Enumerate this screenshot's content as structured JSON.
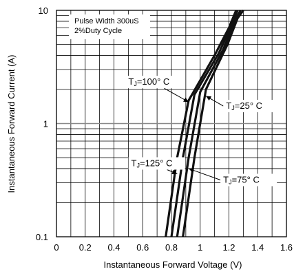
{
  "chart_data": {
    "type": "line",
    "title": "",
    "xlabel": "Instantaneous Forward Voltage (V)",
    "ylabel": "Instantaneous Forward Current (A)",
    "xlim": [
      0,
      1.6
    ],
    "ylim": [
      0.1,
      10
    ],
    "y_scale": "log",
    "grid": true,
    "x_ticks": [
      "0",
      "0.2",
      "0.4",
      "0.6",
      "0.8",
      "1",
      "1.2",
      "1.4",
      "1.6"
    ],
    "y_ticks": [
      "0.1",
      "1",
      "10"
    ],
    "legend_box": {
      "line1": "Pulse Width 300uS",
      "line2": "2%Duty Cycle",
      "placement": "top-left"
    },
    "series": [
      {
        "name": "TJ=125° C",
        "points": [
          [
            0.76,
            0.1
          ],
          [
            0.84,
            0.5
          ],
          [
            0.92,
            1.6
          ],
          [
            1.1,
            4.0
          ],
          [
            1.2,
            7.0
          ],
          [
            1.25,
            10
          ]
        ]
      },
      {
        "name": "TJ=100° C",
        "points": [
          [
            0.8,
            0.1
          ],
          [
            0.88,
            0.5
          ],
          [
            0.96,
            1.8
          ],
          [
            1.13,
            4.2
          ],
          [
            1.22,
            7.5
          ],
          [
            1.26,
            10
          ]
        ]
      },
      {
        "name": "TJ=75° C",
        "points": [
          [
            0.84,
            0.1
          ],
          [
            0.92,
            0.5
          ],
          [
            1.0,
            1.9
          ],
          [
            1.16,
            4.5
          ],
          [
            1.24,
            8.0
          ],
          [
            1.28,
            10
          ]
        ]
      },
      {
        "name": "TJ=25° C",
        "points": [
          [
            0.88,
            0.1
          ],
          [
            0.96,
            0.5
          ],
          [
            1.04,
            2.0
          ],
          [
            1.19,
            5.0
          ],
          [
            1.26,
            8.5
          ],
          [
            1.3,
            10
          ]
        ]
      }
    ],
    "annotations": [
      {
        "label_main": "T",
        "label_sub": "J",
        "label_rest": "=100°  C",
        "x": 0.5,
        "y": 2.2,
        "arrow_to": [
          0.92,
          1.55
        ]
      },
      {
        "label_main": "T",
        "label_sub": "J",
        "label_rest": "=25°  C",
        "x": 1.18,
        "y": 1.35,
        "arrow_to": [
          1.04,
          1.75
        ]
      },
      {
        "label_main": "T",
        "label_sub": "J",
        "label_rest": "=125°  C",
        "x": 0.52,
        "y": 0.42,
        "arrow_to": [
          0.84,
          0.36
        ]
      },
      {
        "label_main": "T",
        "label_sub": "J",
        "label_rest": "=75°  C",
        "x": 1.16,
        "y": 0.3,
        "arrow_to": [
          0.92,
          0.4
        ]
      }
    ]
  }
}
